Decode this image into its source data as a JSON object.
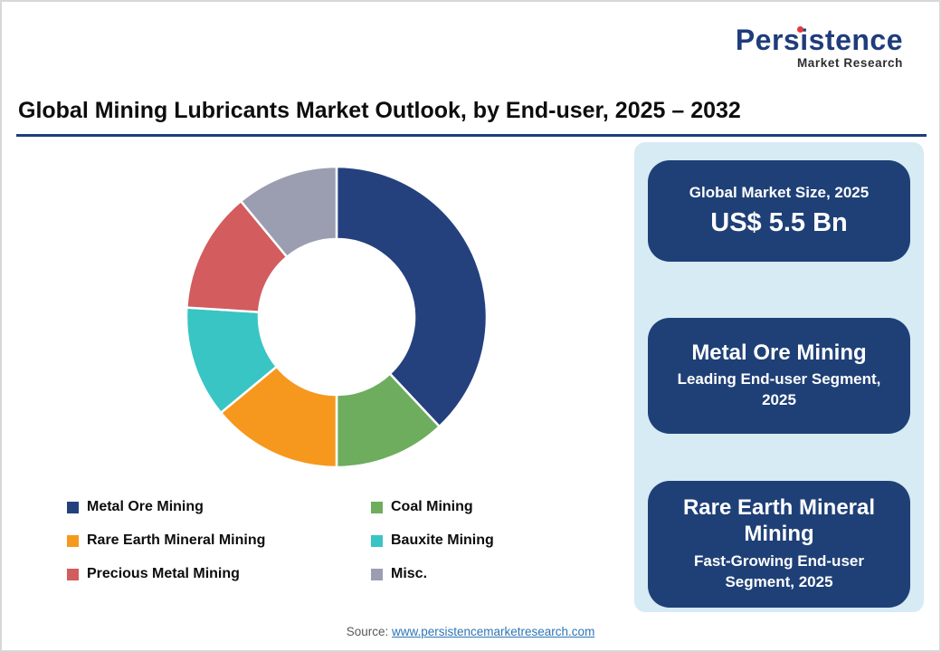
{
  "logo": {
    "brand": "Persistence",
    "subtitle": "Market Research"
  },
  "header": {
    "title": "Global Mining Lubricants Market Outlook, by End-user, 2025 – 2032"
  },
  "chart_data": {
    "type": "pie",
    "donut": true,
    "title": "Global Mining Lubricants Market Outlook, by End-user, 2025 – 2032",
    "start_angle_deg": 0,
    "legend_position": "bottom",
    "segments": [
      {
        "label": "Metal Ore Mining",
        "value": 38,
        "color": "#24417D"
      },
      {
        "label": "Coal Mining",
        "value": 12,
        "color": "#6EAD5E"
      },
      {
        "label": "Rare Earth Mineral Mining",
        "value": 14,
        "color": "#F6981E"
      },
      {
        "label": "Bauxite Mining",
        "value": 12,
        "color": "#38C5C4"
      },
      {
        "label": "Precious Metal Mining",
        "value": 13,
        "color": "#D25C5E"
      },
      {
        "label": "Misc.",
        "value": 11,
        "color": "#9B9EB1"
      }
    ]
  },
  "info_panel": {
    "panel_bg": "#D7EBF5",
    "card_bg": "#1F4077",
    "cards": [
      {
        "line1": "Global Market Size, 2025",
        "line2": "US$ 5.5 Bn"
      },
      {
        "line1": "Metal Ore Mining",
        "line2": "Leading End-user Segment, 2025"
      },
      {
        "line1": "Rare Earth Mineral Mining",
        "line2": "Fast-Growing End-user Segment, 2025"
      }
    ]
  },
  "footer": {
    "source_label": "Source:",
    "source_link": "www.persistencemarketresearch.com"
  }
}
